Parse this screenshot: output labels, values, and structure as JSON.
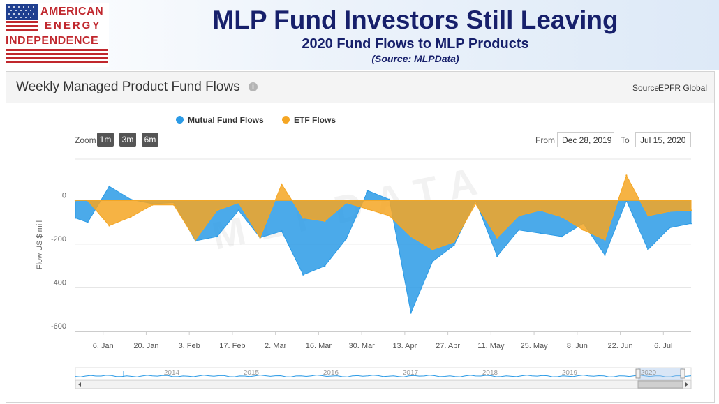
{
  "header": {
    "logo_line1": "AMERICAN",
    "logo_line2": "ENERGY",
    "logo_line3": "INDEPENDENCE",
    "title": "MLP Fund Investors Still Leaving",
    "subtitle": "2020 Fund Flows to MLP Products",
    "source": "(Source: MLPData)"
  },
  "panel": {
    "title": "Weekly Managed Product Fund Flows",
    "source_label": "Source",
    "source_value": "EPFR Global"
  },
  "controls": {
    "zoom_label": "Zoom",
    "zoom_buttons": [
      "1m",
      "3m",
      "6m"
    ],
    "from_label": "From",
    "from_value": "Dec 28, 2019",
    "to_label": "To",
    "to_value": "Jul 15, 2020"
  },
  "watermark": "MLPDATA",
  "colors": {
    "mutual": "#2c9be6",
    "etf": "#f5a623",
    "title": "#17206b",
    "logo_red": "#c0272d"
  },
  "chart_data": {
    "type": "area",
    "ylabel": "Flow US $ mill",
    "ylim": [
      -600,
      190
    ],
    "yticks": [
      0,
      -200,
      -400,
      -600
    ],
    "xlim": [
      "2019-12-28",
      "2020-07-15"
    ],
    "xticks": [
      {
        "date": "2020-01-06",
        "label": "6. Jan"
      },
      {
        "date": "2020-01-20",
        "label": "20. Jan"
      },
      {
        "date": "2020-02-03",
        "label": "3. Feb"
      },
      {
        "date": "2020-02-17",
        "label": "17. Feb"
      },
      {
        "date": "2020-03-02",
        "label": "2. Mar"
      },
      {
        "date": "2020-03-16",
        "label": "16. Mar"
      },
      {
        "date": "2020-03-30",
        "label": "30. Mar"
      },
      {
        "date": "2020-04-13",
        "label": "13. Apr"
      },
      {
        "date": "2020-04-27",
        "label": "27. Apr"
      },
      {
        "date": "2020-05-11",
        "label": "11. May"
      },
      {
        "date": "2020-05-25",
        "label": "25. May"
      },
      {
        "date": "2020-06-08",
        "label": "8. Jun"
      },
      {
        "date": "2020-06-22",
        "label": "22. Jun"
      },
      {
        "date": "2020-07-06",
        "label": "6. Jul"
      }
    ],
    "legend_position": "top-center",
    "grid": true,
    "series": [
      {
        "name": "Mutual Fund Flows",
        "color": "#2c9be6",
        "points": [
          [
            "2019-12-28",
            -80
          ],
          [
            "2020-01-01",
            -100
          ],
          [
            "2020-01-08",
            65
          ],
          [
            "2020-01-15",
            5
          ],
          [
            "2020-01-22",
            -15
          ],
          [
            "2020-01-29",
            -10
          ],
          [
            "2020-02-05",
            -185
          ],
          [
            "2020-02-12",
            -165
          ],
          [
            "2020-02-19",
            -45
          ],
          [
            "2020-02-26",
            -170
          ],
          [
            "2020-03-04",
            -140
          ],
          [
            "2020-03-11",
            -340
          ],
          [
            "2020-03-18",
            -300
          ],
          [
            "2020-03-25",
            -175
          ],
          [
            "2020-04-01",
            45
          ],
          [
            "2020-04-08",
            5
          ],
          [
            "2020-04-15",
            -515
          ],
          [
            "2020-04-22",
            -280
          ],
          [
            "2020-04-29",
            -205
          ],
          [
            "2020-05-06",
            0
          ],
          [
            "2020-05-13",
            -255
          ],
          [
            "2020-05-20",
            -135
          ],
          [
            "2020-05-27",
            -150
          ],
          [
            "2020-06-03",
            -165
          ],
          [
            "2020-06-10",
            -105
          ],
          [
            "2020-06-17",
            -250
          ],
          [
            "2020-06-24",
            0
          ],
          [
            "2020-07-01",
            -225
          ],
          [
            "2020-07-08",
            -125
          ],
          [
            "2020-07-15",
            -105
          ]
        ]
      },
      {
        "name": "ETF Flows",
        "color": "#f5a623",
        "points": [
          [
            "2019-12-28",
            0
          ],
          [
            "2020-01-01",
            0
          ],
          [
            "2020-01-08",
            -115
          ],
          [
            "2020-01-15",
            -75
          ],
          [
            "2020-01-22",
            -20
          ],
          [
            "2020-01-29",
            -20
          ],
          [
            "2020-02-05",
            -180
          ],
          [
            "2020-02-12",
            -45
          ],
          [
            "2020-02-19",
            -10
          ],
          [
            "2020-02-26",
            -170
          ],
          [
            "2020-03-04",
            75
          ],
          [
            "2020-03-11",
            -80
          ],
          [
            "2020-03-18",
            -95
          ],
          [
            "2020-03-25",
            -10
          ],
          [
            "2020-04-01",
            -40
          ],
          [
            "2020-04-08",
            -70
          ],
          [
            "2020-04-15",
            -165
          ],
          [
            "2020-04-22",
            -225
          ],
          [
            "2020-04-29",
            -190
          ],
          [
            "2020-05-06",
            -15
          ],
          [
            "2020-05-13",
            -170
          ],
          [
            "2020-05-20",
            -70
          ],
          [
            "2020-05-27",
            -45
          ],
          [
            "2020-06-03",
            -75
          ],
          [
            "2020-06-10",
            -135
          ],
          [
            "2020-06-17",
            -180
          ],
          [
            "2020-06-24",
            115
          ],
          [
            "2020-07-01",
            -70
          ],
          [
            "2020-07-08",
            -50
          ],
          [
            "2020-07-15",
            -45
          ]
        ]
      }
    ],
    "navigator": {
      "year_labels": [
        "2014",
        "2015",
        "2016",
        "2017",
        "2018",
        "2019",
        "2020"
      ]
    }
  }
}
